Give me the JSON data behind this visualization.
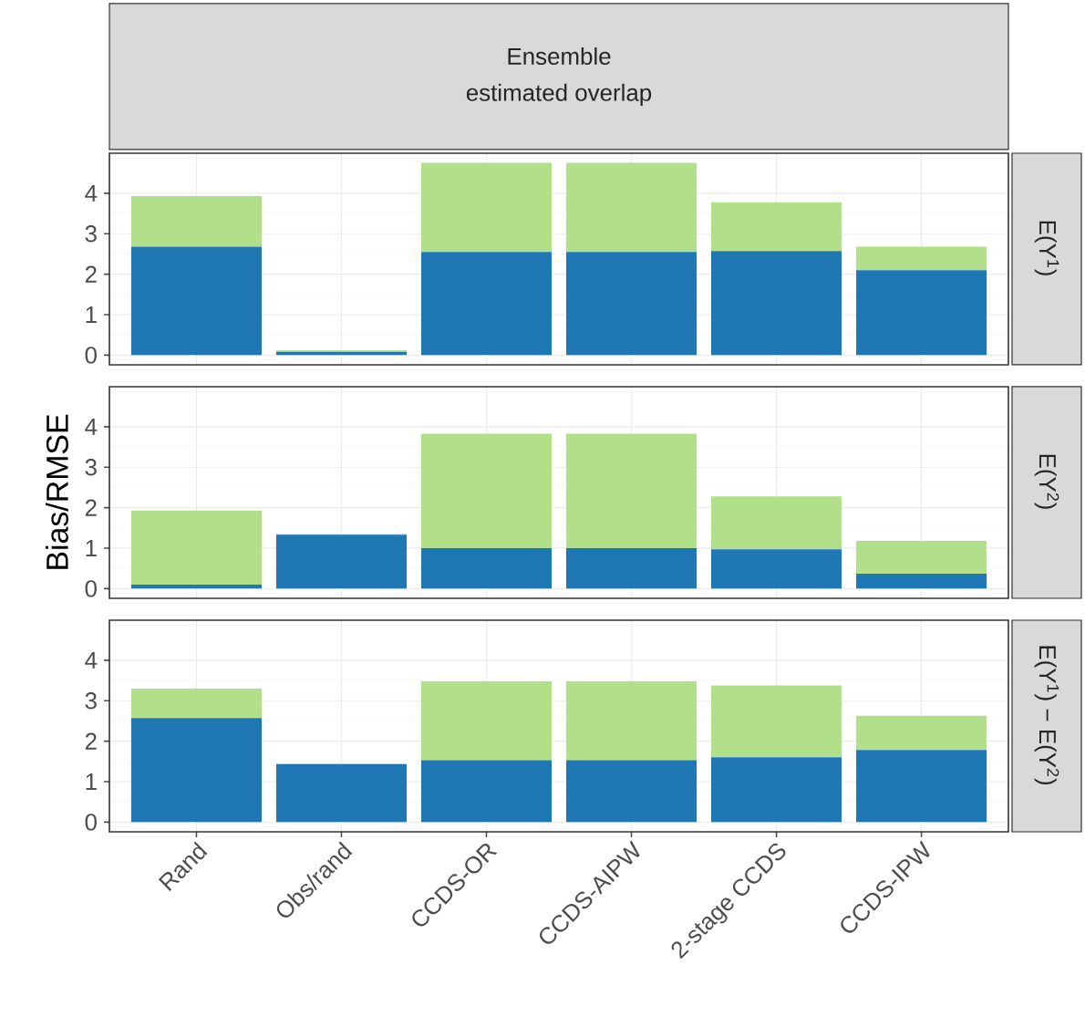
{
  "chart_data": [
    {
      "type": "bar",
      "y2label": "E(Y$^{1}$)",
      "annotations": [
        "Ensemble",
        "estimated overlap"
      ],
      "categories": [
        null,
        null,
        null,
        null,
        null,
        null
      ],
      "stacked": true,
      "series": [
        {
          "color": "#1f78b4",
          "values": [
            2.68,
            0.08,
            2.55,
            2.55,
            2.57,
            2.1
          ]
        },
        {
          "color": "#b2df8a",
          "values": [
            1.25,
            0.04,
            2.2,
            2.2,
            1.21,
            0.58
          ]
        }
      ],
      "ylim": [
        -0.24,
        4.99
      ],
      "yticks": [
        0,
        1,
        2,
        3,
        4
      ],
      "grid": true,
      "tick_labels": "y"
    },
    {
      "type": "bar",
      "y2label": "E(Y$^{2}$)",
      "ylabel": "Bias/RMSE",
      "categories": [
        null,
        null,
        null,
        null,
        null,
        null
      ],
      "stacked": true,
      "series": [
        {
          "color": "#1f78b4",
          "values": [
            0.1,
            1.33,
            1.0,
            1.0,
            0.97,
            0.37
          ]
        },
        {
          "color": "#b2df8a",
          "values": [
            1.83,
            0.02,
            2.83,
            2.83,
            1.31,
            0.81
          ]
        }
      ],
      "ylim": [
        -0.24,
        4.99
      ],
      "yticks": [
        0,
        1,
        2,
        3,
        4
      ],
      "grid": true,
      "tick_labels": "y"
    },
    {
      "type": "bar",
      "y2label": "E(Y$^{1}$) − E(Y$^{2}$)",
      "categories": [
        "Rand",
        "Obs/rand",
        "CCDS-OR",
        "CCDS-AIPW",
        "2-stage CCDS",
        "CCDS-IPW"
      ],
      "stacked": true,
      "series": [
        {
          "color": "#1f78b4",
          "values": [
            2.57,
            1.43,
            1.53,
            1.53,
            1.6,
            1.78
          ]
        },
        {
          "color": "#b2df8a",
          "values": [
            0.73,
            0.02,
            1.95,
            1.95,
            1.78,
            0.85
          ]
        }
      ],
      "ylim": [
        -0.24,
        4.99
      ],
      "yticks": [
        0,
        1,
        2,
        3,
        4
      ],
      "grid": true
    }
  ]
}
